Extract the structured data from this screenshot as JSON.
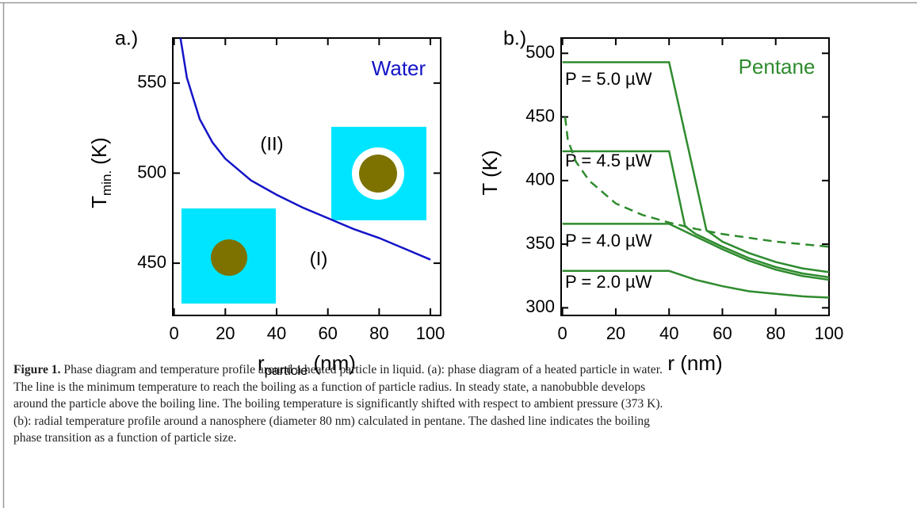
{
  "chart_data": [
    {
      "type": "line",
      "label": "a.)",
      "x_label": {
        "main": "r",
        "sub": "particle",
        "unit": "(nm)"
      },
      "y_label": {
        "main": "T",
        "sub": "min.",
        "unit": "(K)"
      },
      "xlim": [
        -0.5,
        104
      ],
      "ylim": [
        421,
        575
      ],
      "xticks": [
        0,
        20,
        40,
        60,
        80,
        100
      ],
      "yticks": [
        450,
        500,
        550
      ],
      "series": [
        {
          "color": "#1414c8",
          "dashed": false,
          "x": [
            2.5,
            5,
            10,
            15,
            20,
            30,
            40,
            50,
            60,
            70,
            80,
            90,
            100
          ],
          "values": [
            575,
            553,
            530,
            517,
            508,
            496,
            488,
            481,
            475,
            469,
            464,
            458,
            452
          ]
        }
      ],
      "annotations": [
        {
          "text": "Water",
          "color": "#1414c8"
        },
        {
          "text": "(II)",
          "color": "#000000"
        },
        {
          "text": "(I)",
          "color": "#000000"
        }
      ]
    },
    {
      "type": "line",
      "label": "b.)",
      "x_label": {
        "main": "r (nm)"
      },
      "y_label": {
        "main": "T (K)"
      },
      "xlim": [
        -0.5,
        100
      ],
      "ylim": [
        294,
        512
      ],
      "xticks": [
        0,
        20,
        40,
        60,
        80,
        100
      ],
      "yticks": [
        300,
        350,
        400,
        450,
        500
      ],
      "series": [
        {
          "name": "P = 5.0 µW",
          "color": "#2e8b2e",
          "dashed": false,
          "x": [
            0,
            40,
            45,
            50,
            54,
            60,
            70,
            80,
            90,
            100
          ],
          "values": [
            493,
            493,
            446,
            399,
            361,
            352,
            343,
            336,
            331,
            328
          ]
        },
        {
          "name": "P = 4.5 µW",
          "color": "#2e8b2e",
          "dashed": false,
          "x": [
            0,
            40,
            46,
            50,
            60,
            70,
            80,
            90,
            100
          ],
          "values": [
            423,
            423,
            364,
            358,
            348,
            339,
            332,
            327,
            324
          ]
        },
        {
          "name": "P = 4.0 µW",
          "color": "#2e8b2e",
          "dashed": false,
          "x": [
            0,
            40,
            50,
            60,
            70,
            80,
            90,
            100
          ],
          "values": [
            366,
            366,
            356,
            346,
            337,
            330,
            325,
            322
          ]
        },
        {
          "name": "P = 2.0 µW",
          "color": "#2e8b2e",
          "dashed": false,
          "x": [
            0,
            40,
            50,
            60,
            70,
            80,
            90,
            100
          ],
          "values": [
            329,
            329,
            322,
            317,
            313,
            311,
            309,
            308
          ]
        },
        {
          "color": "#2e8b2e",
          "dashed": true,
          "x": [
            1,
            2,
            5,
            10,
            20,
            30,
            40,
            50,
            60,
            70,
            80,
            90,
            100
          ],
          "values": [
            450,
            432,
            415,
            400,
            382,
            373,
            367,
            362,
            358,
            355,
            352,
            350,
            348
          ]
        }
      ],
      "annotations": [
        {
          "text": "Pentane",
          "color": "#2e8b2e"
        }
      ]
    }
  ],
  "caption": {
    "label": "Figure 1.",
    "lines": [
      "Phase diagram and temperature profile around a heated particle in liquid. (a): phase diagram of a heated particle in water.",
      "The line is the minimum temperature to reach the boiling as a function of particle radius. In steady state, a nanobubble develops",
      "around the particle above the boiling line. The boiling temperature is significantly shifted with respect to ambient pressure (373 K).",
      "(b): radial temperature profile around a nanosphere (diameter 80 nm) calculated in pentane. The dashed line indicates the boiling",
      "phase transition as a function of particle size."
    ]
  }
}
